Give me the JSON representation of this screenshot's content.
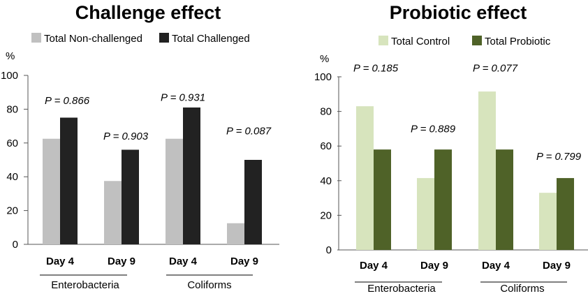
{
  "chart_data": [
    {
      "type": "bar",
      "title": "Challenge effect",
      "ylabel": "%",
      "ylim": [
        0,
        100
      ],
      "yticks": [
        "0",
        "20",
        "40",
        "60",
        "80",
        "100"
      ],
      "categories": [
        "Day 4",
        "Day 9",
        "Day 4",
        "Day 9"
      ],
      "groups": [
        {
          "label": "Enterobacteria",
          "categories": [
            0,
            1
          ]
        },
        {
          "label": "Coliforms",
          "categories": [
            2,
            3
          ]
        }
      ],
      "series": [
        {
          "name": "Total Non-challenged",
          "color": "#c0c0c0",
          "values": [
            62.5,
            37.5,
            62.5,
            12.5
          ]
        },
        {
          "name": "Total Challenged",
          "color": "#222222",
          "values": [
            75,
            56,
            81,
            50
          ]
        }
      ],
      "p_values": [
        "P = 0.866",
        "P = 0.903",
        "P = 0.931",
        "P = 0.087"
      ],
      "p_value_y": [
        83,
        62,
        85,
        65
      ],
      "legend": "top"
    },
    {
      "type": "bar",
      "title": "Probiotic effect",
      "ylabel": "%",
      "ylim": [
        0,
        100
      ],
      "yticks": [
        "0",
        "20",
        "40",
        "60",
        "80",
        "100"
      ],
      "categories": [
        "Day 4",
        "Day 9",
        "Day 4",
        "Day 9"
      ],
      "groups": [
        {
          "label": "Enterobacteria",
          "categories": [
            0,
            1
          ]
        },
        {
          "label": "Coliforms",
          "categories": [
            2,
            3
          ]
        }
      ],
      "series": [
        {
          "name": "Total Control",
          "color": "#d7e4bd",
          "values": [
            83,
            41.5,
            91.5,
            33
          ]
        },
        {
          "name": "Total Probiotic",
          "color": "#4f6228",
          "values": [
            58,
            58,
            58,
            41.5
          ]
        }
      ],
      "p_values": [
        "P = 0.185",
        "P = 0.889",
        "P = 0.077",
        "P = 0.799"
      ],
      "p_value_y": [
        103,
        68,
        103,
        52
      ],
      "legend": "top"
    }
  ]
}
